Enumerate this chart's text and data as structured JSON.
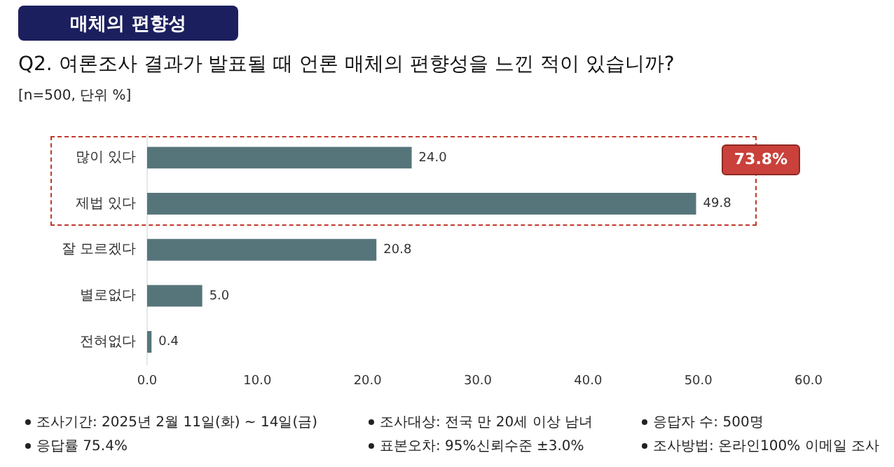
{
  "chart_data": {
    "type": "bar",
    "orientation": "horizontal",
    "title": "매체의 편향성",
    "subtitle": "Q2. 여론조사 결과가 발표될 때 언론 매체의 편향성을 느낀 적이 있습니까?",
    "categories": [
      "많이 있다",
      "제법 있다",
      "잘 모르겠다",
      "별로없다",
      "전혀없다"
    ],
    "values": [
      24.0,
      49.8,
      20.8,
      5.0,
      0.4
    ],
    "value_labels": [
      "24.0",
      "49.8",
      "20.8",
      "5.0",
      "0.4"
    ],
    "color": "#56757b",
    "xlim": [
      0,
      60
    ],
    "xticks": [
      {
        "value": 0,
        "label": "0.0"
      },
      {
        "value": 10,
        "label": "10.0"
      },
      {
        "value": 20,
        "label": "20.0"
      },
      {
        "value": 30,
        "label": "30.0"
      },
      {
        "value": 40,
        "label": "40.0"
      },
      {
        "value": 50,
        "label": "50.0"
      },
      {
        "value": 60,
        "label": "60.0"
      }
    ],
    "grid": false,
    "legend": false,
    "annotations": [
      "[n=500, 단위 %]",
      "73.8%",
      "조사기간: 2025년 2월 11일(화) ~ 14일(금)",
      "조사대상: 전국 만 20세 이상 남녀",
      "응답자 수: 500명",
      "응답률 75.4%",
      "표본오차: 95%신뢰수준 ±3.0%",
      "조사방법: 온라인100% 이메일 조사"
    ]
  }
}
